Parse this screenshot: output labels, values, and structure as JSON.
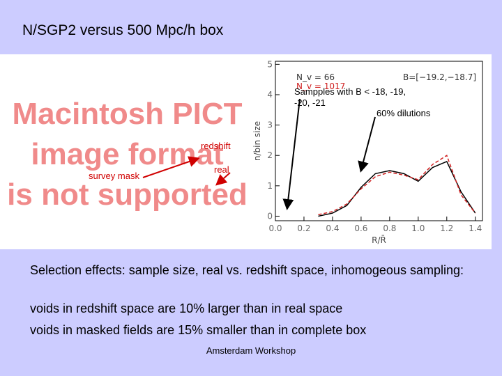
{
  "title": "N/SGP2 versus 500 Mpc/h box",
  "placeholder": [
    "Macintosh PICT",
    "image format",
    "is not supported"
  ],
  "annotations": {
    "samples": "Sampples with B < -18, -19, -20, -21",
    "dilutions": "60% dilutions",
    "redshift": "redshift",
    "real": "real",
    "survey_mask": "survey mask"
  },
  "figure": {
    "type": "line",
    "xlabel": "R/R̄",
    "ylabel": "n/bin size",
    "legend_text": [
      "N_v = 66",
      "N_v = 1017",
      "B=[−19.2,−18.7]"
    ],
    "xlim": [
      0,
      1.45
    ],
    "ylim": [
      -0.15,
      5.1
    ],
    "xticks": [
      {
        "value": 0,
        "label": "0.0"
      },
      {
        "value": 0.2,
        "label": "0.2"
      },
      {
        "value": 0.4,
        "label": "0.4"
      },
      {
        "value": 0.6,
        "label": "0.6"
      },
      {
        "value": 0.8,
        "label": "0.8"
      },
      {
        "value": 1.0,
        "label": "1.0"
      },
      {
        "value": 1.2,
        "label": "1.2"
      },
      {
        "value": 1.4,
        "label": "1.4"
      }
    ],
    "yticks": [
      0,
      1,
      2,
      3,
      4,
      5
    ],
    "x": [
      0.3,
      0.4,
      0.5,
      0.6,
      0.7,
      0.8,
      0.9,
      1.0,
      1.1,
      1.2,
      1.3,
      1.4
    ],
    "series": [
      {
        "color": "#000000",
        "values": [
          0,
          0.1,
          0.35,
          0.95,
          1.4,
          1.5,
          1.4,
          1.15,
          1.6,
          1.8,
          0.8,
          0.1
        ]
      },
      {
        "color": "#d02020",
        "values": [
          0.05,
          0.15,
          0.4,
          0.9,
          1.3,
          1.45,
          1.35,
          1.2,
          1.7,
          2.0,
          0.7,
          0.1
        ]
      }
    ]
  },
  "body": [
    "Selection effects: sample size, real vs. redshift space, inhomogeous sampling:",
    "voids in redshift space are 10% larger than in real space",
    "voids in masked fields are 15% smaller than in complete box"
  ],
  "footer": "Amsterdam Workshop"
}
